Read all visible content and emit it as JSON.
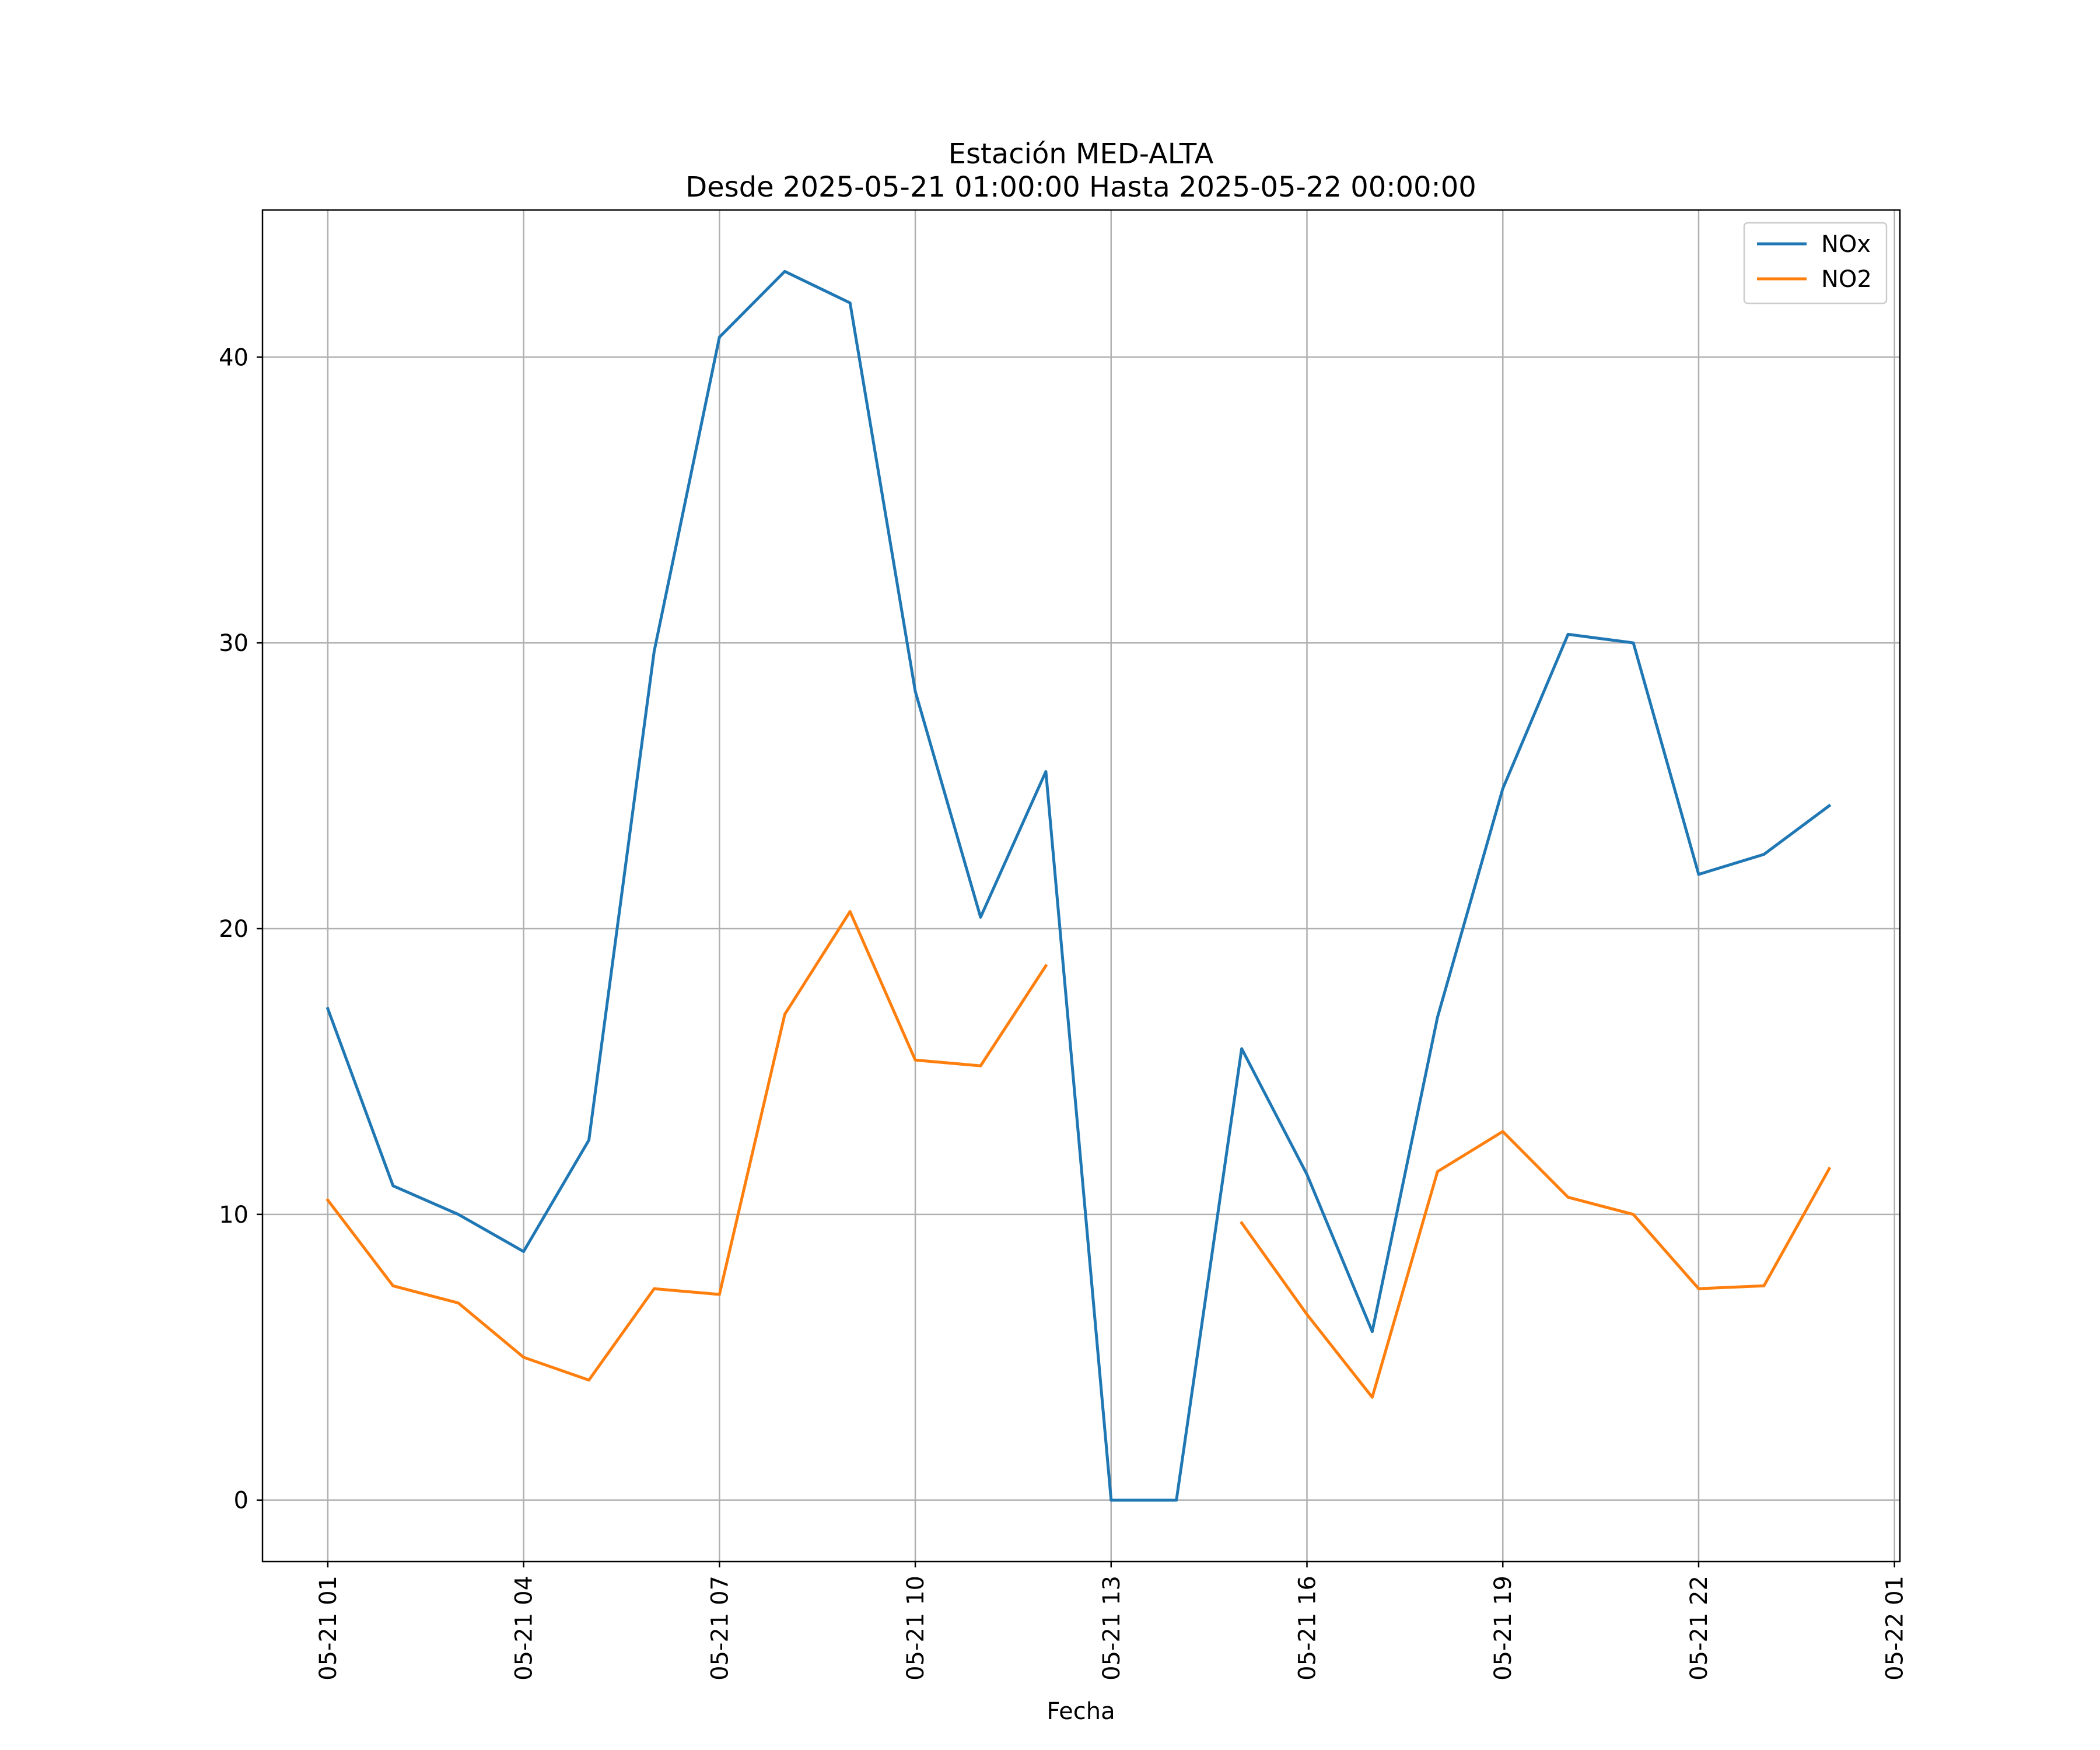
{
  "chart_data": {
    "type": "line",
    "title_lines": [
      "Estación MED-ALTA",
      "Desde 2025-05-21 01:00:00 Hasta 2025-05-22 00:00:00"
    ],
    "xlabel": "Fecha",
    "ylabel": "",
    "x": [
      "2025-05-21 01:00",
      "2025-05-21 02:00",
      "2025-05-21 03:00",
      "2025-05-21 04:00",
      "2025-05-21 05:00",
      "2025-05-21 06:00",
      "2025-05-21 07:00",
      "2025-05-21 08:00",
      "2025-05-21 09:00",
      "2025-05-21 10:00",
      "2025-05-21 11:00",
      "2025-05-21 12:00",
      "2025-05-21 13:00",
      "2025-05-21 14:00",
      "2025-05-21 15:00",
      "2025-05-21 16:00",
      "2025-05-21 17:00",
      "2025-05-21 18:00",
      "2025-05-21 19:00",
      "2025-05-21 20:00",
      "2025-05-21 21:00",
      "2025-05-21 22:00",
      "2025-05-21 23:00",
      "2025-05-22 00:00"
    ],
    "series": [
      {
        "name": "NOx",
        "color": "#1f77b4",
        "values": [
          17.2,
          11.0,
          10.0,
          8.7,
          12.6,
          29.7,
          40.7,
          43.0,
          41.9,
          28.3,
          20.4,
          25.5,
          0.0,
          0.0,
          15.8,
          11.4,
          5.9,
          16.9,
          24.9,
          30.3,
          30.0,
          21.9,
          22.6,
          24.3
        ]
      },
      {
        "name": "NO2",
        "color": "#ff7f0e",
        "values": [
          10.5,
          7.5,
          6.9,
          5.0,
          4.2,
          7.4,
          7.2,
          17.0,
          20.6,
          15.4,
          15.2,
          18.7,
          null,
          null,
          9.7,
          6.5,
          3.6,
          11.5,
          12.9,
          10.6,
          10.0,
          7.4,
          7.5,
          11.6
        ]
      }
    ],
    "x_ticks": [
      "05-21 01",
      "05-21 04",
      "05-21 07",
      "05-21 10",
      "05-21 13",
      "05-21 16",
      "05-21 19",
      "05-21 22",
      "05-22 01"
    ],
    "y_ticks": [
      0,
      10,
      20,
      30,
      40
    ],
    "ylim": [
      -2.15,
      45.15
    ],
    "xlim": [
      "2025-05-21 00:00",
      "2025-05-22 01:05"
    ],
    "grid": true,
    "legend_position": "top-right"
  }
}
